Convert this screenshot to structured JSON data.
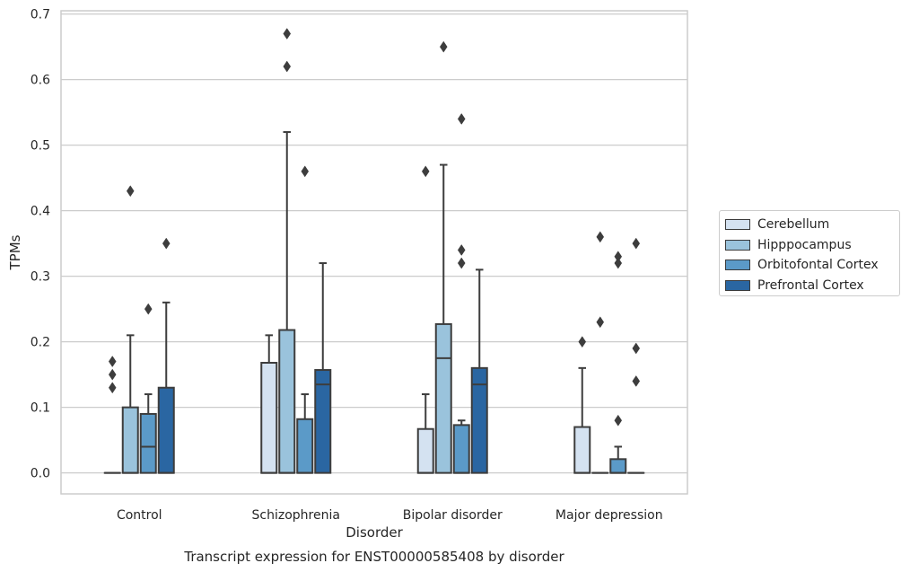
{
  "chart_data": {
    "type": "box",
    "title": "Transcript expression for ENST00000585408 by disorder",
    "xlabel": "Disorder",
    "ylabel": "TPMs",
    "ylim": [
      -0.032,
      0.705
    ],
    "yticks": [
      0.0,
      0.1,
      0.2,
      0.3,
      0.4,
      0.5,
      0.6,
      0.7
    ],
    "ytick_labels": [
      "0.0",
      "0.1",
      "0.2",
      "0.3",
      "0.4",
      "0.5",
      "0.6",
      "0.7"
    ],
    "grid": "horizontal",
    "legend_position": "right",
    "categories": [
      "Control",
      "Schizophrenia",
      "Bipolar disorder",
      "Major depression"
    ],
    "series": [
      {
        "name": "Cerebellum",
        "color": "#d4e2f1",
        "boxes": [
          {
            "q1": 0.0,
            "median": 0.0,
            "q3": 0.0,
            "whisker_low": 0.0,
            "whisker_high": 0.0,
            "outliers": [
              0.13,
              0.15,
              0.17
            ]
          },
          {
            "q1": 0.0,
            "median": 0.0,
            "q3": 0.168,
            "whisker_low": 0.0,
            "whisker_high": 0.21,
            "outliers": []
          },
          {
            "q1": 0.0,
            "median": 0.0,
            "q3": 0.067,
            "whisker_low": 0.0,
            "whisker_high": 0.12,
            "outliers": [
              0.46
            ]
          },
          {
            "q1": 0.0,
            "median": 0.0,
            "q3": 0.07,
            "whisker_low": 0.0,
            "whisker_high": 0.16,
            "outliers": [
              0.2
            ]
          }
        ]
      },
      {
        "name": "Hipppocampus",
        "color": "#9ac3dc",
        "boxes": [
          {
            "q1": 0.0,
            "median": 0.0,
            "q3": 0.1,
            "whisker_low": 0.0,
            "whisker_high": 0.21,
            "outliers": [
              0.43
            ]
          },
          {
            "q1": 0.0,
            "median": 0.0,
            "q3": 0.218,
            "whisker_low": 0.0,
            "whisker_high": 0.52,
            "outliers": [
              0.62,
              0.67
            ]
          },
          {
            "q1": 0.0,
            "median": 0.175,
            "q3": 0.227,
            "whisker_low": 0.0,
            "whisker_high": 0.47,
            "outliers": [
              0.65
            ]
          },
          {
            "q1": 0.0,
            "median": 0.0,
            "q3": 0.0,
            "whisker_low": 0.0,
            "whisker_high": 0.0,
            "outliers": [
              0.23,
              0.36
            ]
          }
        ]
      },
      {
        "name": "Orbitofontal Cortex",
        "color": "#5b9ac8",
        "boxes": [
          {
            "q1": 0.0,
            "median": 0.04,
            "q3": 0.09,
            "whisker_low": 0.0,
            "whisker_high": 0.12,
            "outliers": [
              0.25
            ]
          },
          {
            "q1": 0.0,
            "median": 0.0,
            "q3": 0.082,
            "whisker_low": 0.0,
            "whisker_high": 0.12,
            "outliers": [
              0.46
            ]
          },
          {
            "q1": 0.0,
            "median": 0.0,
            "q3": 0.073,
            "whisker_low": 0.0,
            "whisker_high": 0.08,
            "outliers": [
              0.32,
              0.34,
              0.54
            ]
          },
          {
            "q1": 0.0,
            "median": 0.0,
            "q3": 0.021,
            "whisker_low": 0.0,
            "whisker_high": 0.04,
            "outliers": [
              0.08,
              0.32,
              0.33
            ]
          }
        ]
      },
      {
        "name": "Prefrontal Cortex",
        "color": "#2a66a2",
        "boxes": [
          {
            "q1": 0.0,
            "median": 0.0,
            "q3": 0.13,
            "whisker_low": 0.0,
            "whisker_high": 0.26,
            "outliers": [
              0.35
            ]
          },
          {
            "q1": 0.0,
            "median": 0.135,
            "q3": 0.157,
            "whisker_low": 0.0,
            "whisker_high": 0.32,
            "outliers": []
          },
          {
            "q1": 0.0,
            "median": 0.135,
            "q3": 0.16,
            "whisker_low": 0.0,
            "whisker_high": 0.31,
            "outliers": []
          },
          {
            "q1": 0.0,
            "median": 0.0,
            "q3": 0.0,
            "whisker_low": 0.0,
            "whisker_high": 0.0,
            "outliers": [
              0.14,
              0.19,
              0.35
            ]
          }
        ]
      }
    ]
  }
}
